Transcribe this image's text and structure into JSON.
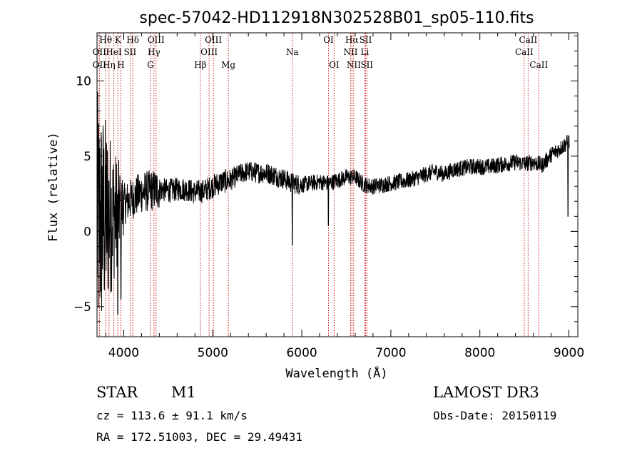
{
  "chart_data": {
    "type": "line",
    "title": "spec-57042-HD112918N302528B01_sp05-110.fits",
    "xlabel": "Wavelength (Å)",
    "ylabel": "Flux (relative)",
    "xlim": [
      3700,
      9100
    ],
    "ylim": [
      -7,
      13.2
    ],
    "x_ticks": [
      4000,
      5000,
      6000,
      7000,
      8000,
      9000
    ],
    "y_ticks": [
      -5,
      0,
      5,
      10
    ],
    "series": [
      {
        "name": "flux",
        "continuum": [
          [
            3700,
            0.5
          ],
          [
            3800,
            1.0
          ],
          [
            3900,
            1.2
          ],
          [
            4000,
            1.8
          ],
          [
            4100,
            2.2
          ],
          [
            4200,
            2.6
          ],
          [
            4300,
            2.7
          ],
          [
            4400,
            2.8
          ],
          [
            4500,
            2.7
          ],
          [
            4600,
            2.8
          ],
          [
            4700,
            2.8
          ],
          [
            4800,
            2.6
          ],
          [
            4900,
            2.7
          ],
          [
            5000,
            3.0
          ],
          [
            5100,
            3.3
          ],
          [
            5200,
            3.4
          ],
          [
            5300,
            3.8
          ],
          [
            5400,
            4.0
          ],
          [
            5500,
            3.9
          ],
          [
            5600,
            3.9
          ],
          [
            5700,
            3.7
          ],
          [
            5800,
            3.5
          ],
          [
            5900,
            3.2
          ],
          [
            6000,
            3.1
          ],
          [
            6100,
            3.2
          ],
          [
            6200,
            3.3
          ],
          [
            6300,
            3.2
          ],
          [
            6400,
            3.4
          ],
          [
            6500,
            3.6
          ],
          [
            6600,
            3.6
          ],
          [
            6700,
            3.1
          ],
          [
            6800,
            3.0
          ],
          [
            6900,
            3.1
          ],
          [
            7000,
            3.2
          ],
          [
            7100,
            3.3
          ],
          [
            7200,
            3.4
          ],
          [
            7300,
            3.6
          ],
          [
            7400,
            3.8
          ],
          [
            7500,
            4.0
          ],
          [
            7600,
            3.8
          ],
          [
            7700,
            4.1
          ],
          [
            7800,
            4.2
          ],
          [
            7900,
            4.3
          ],
          [
            8000,
            4.3
          ],
          [
            8100,
            4.3
          ],
          [
            8200,
            4.4
          ],
          [
            8300,
            4.5
          ],
          [
            8400,
            4.6
          ],
          [
            8500,
            4.5
          ],
          [
            8600,
            4.6
          ],
          [
            8700,
            4.4
          ],
          [
            8800,
            5.1
          ],
          [
            8900,
            5.5
          ],
          [
            9000,
            6.0
          ]
        ],
        "features": [
          [
            5892,
            -0.9
          ],
          [
            6300,
            0.4
          ],
          [
            3933,
            -5.5
          ],
          [
            3968,
            -4.5
          ],
          [
            8990,
            1.0
          ]
        ]
      }
    ],
    "spectral_lines": [
      {
        "label": "OII",
        "wavelength": 3727,
        "row": 2
      },
      {
        "label": "OII",
        "wavelength": 3727,
        "row": 3
      },
      {
        "label": "Hθ",
        "wavelength": 3798,
        "row": 1
      },
      {
        "label": "Hη",
        "wavelength": 3835,
        "row": 3
      },
      {
        "label": "HeI",
        "wavelength": 3889,
        "row": 2
      },
      {
        "label": "K",
        "wavelength": 3934,
        "row": 1
      },
      {
        "label": "H",
        "wavelength": 3968,
        "row": 3
      },
      {
        "label": "SII",
        "wavelength": 4072,
        "row": 2
      },
      {
        "label": "Hδ",
        "wavelength": 4102,
        "row": 1
      },
      {
        "label": "G",
        "wavelength": 4300,
        "row": 3
      },
      {
        "label": "Hγ",
        "wavelength": 4340,
        "row": 2
      },
      {
        "label": "OIII",
        "wavelength": 4363,
        "row": 1
      },
      {
        "label": "Hβ",
        "wavelength": 4861,
        "row": 3
      },
      {
        "label": "OIII",
        "wavelength": 4959,
        "row": 2
      },
      {
        "label": "OIII",
        "wavelength": 5007,
        "row": 1
      },
      {
        "label": "Mg",
        "wavelength": 5175,
        "row": 3
      },
      {
        "label": "Na",
        "wavelength": 5894,
        "row": 2
      },
      {
        "label": "OI",
        "wavelength": 6300,
        "row": 1
      },
      {
        "label": "OI",
        "wavelength": 6363,
        "row": 3
      },
      {
        "label": "NII",
        "wavelength": 6548,
        "row": 2
      },
      {
        "label": "Hα",
        "wavelength": 6563,
        "row": 1
      },
      {
        "label": "NII",
        "wavelength": 6583,
        "row": 3
      },
      {
        "label": "SII",
        "wavelength": 6717,
        "row": 1
      },
      {
        "label": "Li",
        "wavelength": 6708,
        "row": 2
      },
      {
        "label": "SII",
        "wavelength": 6731,
        "row": 3
      },
      {
        "label": "CaII",
        "wavelength": 8498,
        "row": 2
      },
      {
        "label": "CaII",
        "wavelength": 8542,
        "row": 1
      },
      {
        "label": "CaII",
        "wavelength": 8662,
        "row": 3
      }
    ]
  },
  "info": {
    "class": "STAR",
    "subclass": "M1",
    "survey": "LAMOST DR3",
    "cz": "cz = 113.6 ± 91.1 km/s",
    "obs_date": "Obs-Date: 20150119",
    "radec": "RA = 172.51003, DEC =  29.49431"
  },
  "colors": {
    "axis": "#000000",
    "spectrum": "#000000",
    "line_marker": "#cc0000"
  }
}
